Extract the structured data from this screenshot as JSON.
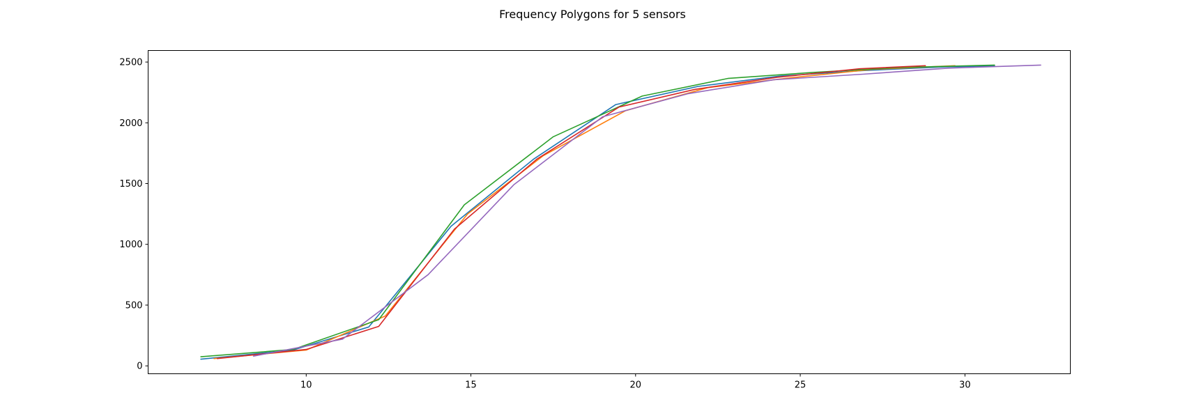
{
  "chart_data": {
    "type": "line",
    "title": "Frequency Polygons for 5 sensors",
    "xlabel": "",
    "ylabel": "",
    "xlim": [
      5.2,
      33.2
    ],
    "ylim": [
      -65,
      2595
    ],
    "xticks": [
      10,
      15,
      20,
      25,
      30
    ],
    "yticks": [
      0,
      500,
      1000,
      1500,
      2000,
      2500
    ],
    "grid": false,
    "legend": "none",
    "series": [
      {
        "color": "#1f77b4",
        "x": [
          6.8,
          9.6,
          11.9,
          14.4,
          16.9,
          19.4,
          21.9,
          24.4,
          26.9,
          29.4,
          30.9
        ],
        "y": [
          55,
          130,
          320,
          1150,
          1700,
          2150,
          2300,
          2385,
          2430,
          2460,
          2468
        ]
      },
      {
        "color": "#ff7f0e",
        "x": [
          7.2,
          10.0,
          12.4,
          14.9,
          17.2,
          19.7,
          22.2,
          24.7,
          27.2,
          29.7
        ],
        "y": [
          60,
          130,
          410,
          1250,
          1730,
          2100,
          2290,
          2370,
          2440,
          2470
        ]
      },
      {
        "color": "#2ca02c",
        "x": [
          6.8,
          9.6,
          12.2,
          14.8,
          17.5,
          20.2,
          22.8,
          25.4,
          28.0,
          30.9
        ],
        "y": [
          75,
          135,
          380,
          1325,
          1885,
          2220,
          2365,
          2415,
          2455,
          2475
        ]
      },
      {
        "color": "#d62728",
        "x": [
          7.3,
          10.0,
          12.2,
          14.5,
          17.0,
          19.5,
          21.8,
          24.3,
          26.8,
          28.8
        ],
        "y": [
          60,
          135,
          325,
          1125,
          1700,
          2130,
          2275,
          2375,
          2445,
          2470
        ]
      },
      {
        "color": "#9467bd",
        "x": [
          8.4,
          11.1,
          13.7,
          16.3,
          19.0,
          21.6,
          24.2,
          26.9,
          29.5,
          32.3
        ],
        "y": [
          80,
          220,
          750,
          1490,
          2050,
          2240,
          2355,
          2400,
          2450,
          2475
        ]
      }
    ]
  }
}
